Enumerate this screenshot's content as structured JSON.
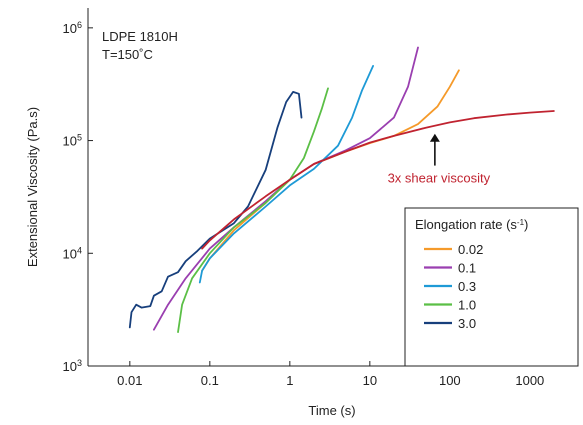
{
  "chart_data": {
    "type": "line",
    "xlabel": "Time (s)",
    "ylabel": "Extensional Viscosity (Pa.s)",
    "xscale": "log",
    "yscale": "log",
    "xlim": [
      0.003,
      4000
    ],
    "ylim": [
      1000,
      1500000
    ],
    "x_ticks": [
      {
        "value": 0.01,
        "label": "0.01"
      },
      {
        "value": 0.1,
        "label": "0.1"
      },
      {
        "value": 1,
        "label": "1"
      },
      {
        "value": 10,
        "label": "10"
      },
      {
        "value": 100,
        "label": "100"
      },
      {
        "value": 1000,
        "label": "1000"
      }
    ],
    "y_ticks": [
      {
        "value": 1000,
        "base": "10",
        "exp": "3"
      },
      {
        "value": 10000,
        "base": "10",
        "exp": "4"
      },
      {
        "value": 100000,
        "base": "10",
        "exp": "5"
      },
      {
        "value": 1000000,
        "base": "10",
        "exp": "6"
      }
    ],
    "annotation_lines": [
      "LDPE 1810H",
      "T=150˚C"
    ],
    "legend": {
      "title_main": "Elongation rate (s",
      "title_sup": "-1",
      "title_end": ")",
      "position": "lower-right"
    },
    "series": [
      {
        "name": "0.02",
        "color": "#f59a2a",
        "in_legend": true,
        "points": [
          [
            0.08,
            7000
          ],
          [
            0.1,
            9000
          ],
          [
            0.2,
            16000
          ],
          [
            0.5,
            28000
          ],
          [
            1,
            45000
          ],
          [
            2,
            62000
          ],
          [
            5,
            80000
          ],
          [
            10,
            95000
          ],
          [
            20,
            110000
          ],
          [
            40,
            140000
          ],
          [
            70,
            200000
          ],
          [
            100,
            300000
          ],
          [
            130,
            420000
          ]
        ]
      },
      {
        "name": "0.1",
        "color": "#9a3fb0",
        "in_legend": true,
        "points": [
          [
            0.02,
            2100
          ],
          [
            0.03,
            3500
          ],
          [
            0.05,
            6000
          ],
          [
            0.1,
            11000
          ],
          [
            0.2,
            17000
          ],
          [
            0.5,
            29000
          ],
          [
            1,
            45000
          ],
          [
            2,
            62000
          ],
          [
            5,
            82000
          ],
          [
            10,
            105000
          ],
          [
            20,
            160000
          ],
          [
            30,
            300000
          ],
          [
            40,
            670000
          ]
        ]
      },
      {
        "name": "0.3",
        "color": "#1e9ad6",
        "in_legend": true,
        "points": [
          [
            0.075,
            5500
          ],
          [
            0.08,
            7000
          ],
          [
            0.1,
            9000
          ],
          [
            0.2,
            15000
          ],
          [
            0.5,
            26000
          ],
          [
            1,
            40000
          ],
          [
            2,
            56000
          ],
          [
            4,
            90000
          ],
          [
            6,
            160000
          ],
          [
            8,
            280000
          ],
          [
            11,
            460000
          ]
        ]
      },
      {
        "name": "1.0",
        "color": "#5bbf46",
        "in_legend": true,
        "points": [
          [
            0.04,
            2000
          ],
          [
            0.045,
            3500
          ],
          [
            0.06,
            6000
          ],
          [
            0.1,
            10000
          ],
          [
            0.2,
            17000
          ],
          [
            0.5,
            28000
          ],
          [
            1,
            45000
          ],
          [
            1.5,
            70000
          ],
          [
            2,
            120000
          ],
          [
            2.5,
            190000
          ],
          [
            3,
            290000
          ]
        ]
      },
      {
        "name": "3.0",
        "color": "#173f7c",
        "in_legend": true,
        "points": [
          [
            0.01,
            2200
          ],
          [
            0.0105,
            3000
          ],
          [
            0.012,
            3500
          ],
          [
            0.014,
            3300
          ],
          [
            0.018,
            3400
          ],
          [
            0.02,
            4200
          ],
          [
            0.025,
            4600
          ],
          [
            0.03,
            6200
          ],
          [
            0.04,
            6800
          ],
          [
            0.05,
            8500
          ],
          [
            0.07,
            10500
          ],
          [
            0.1,
            13500
          ],
          [
            0.2,
            18500
          ],
          [
            0.3,
            26000
          ],
          [
            0.5,
            55000
          ],
          [
            0.7,
            130000
          ],
          [
            0.9,
            220000
          ],
          [
            1.1,
            270000
          ],
          [
            1.3,
            260000
          ],
          [
            1.4,
            160000
          ]
        ]
      },
      {
        "name": "3x shear viscosity",
        "color": "#c02330",
        "in_legend": false,
        "points": [
          [
            0.08,
            11000
          ],
          [
            0.1,
            13000
          ],
          [
            0.2,
            20000
          ],
          [
            0.5,
            32000
          ],
          [
            1,
            45000
          ],
          [
            2,
            62000
          ],
          [
            5,
            80000
          ],
          [
            10,
            96000
          ],
          [
            20,
            110000
          ],
          [
            50,
            130000
          ],
          [
            100,
            145000
          ],
          [
            200,
            158000
          ],
          [
            500,
            170000
          ],
          [
            1000,
            177000
          ],
          [
            2000,
            183000
          ]
        ]
      }
    ],
    "shear_label": "3x shear viscosity",
    "arrow_at": {
      "x": 65,
      "y_from": 60000,
      "y_to": 115000
    }
  }
}
